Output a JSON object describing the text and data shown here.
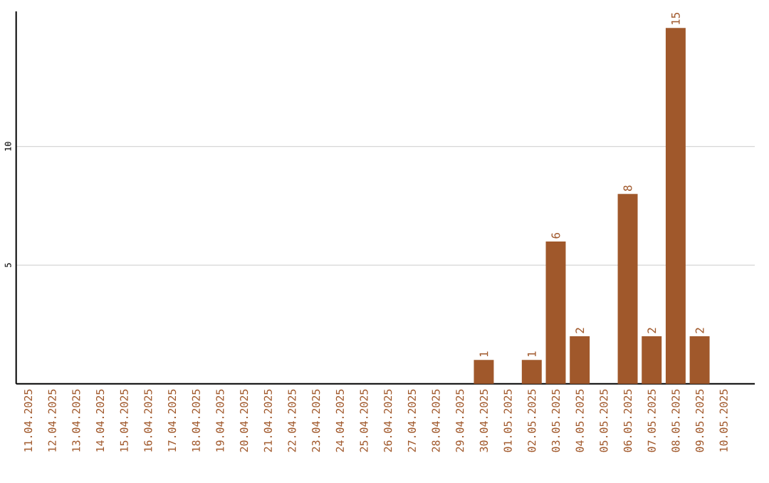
{
  "chart_data": {
    "type": "bar",
    "categories": [
      "11.04.2025",
      "12.04.2025",
      "13.04.2025",
      "14.04.2025",
      "15.04.2025",
      "16.04.2025",
      "17.04.2025",
      "18.04.2025",
      "19.04.2025",
      "20.04.2025",
      "21.04.2025",
      "22.04.2025",
      "23.04.2025",
      "24.04.2025",
      "25.04.2025",
      "26.04.2025",
      "27.04.2025",
      "28.04.2025",
      "29.04.2025",
      "30.04.2025",
      "01.05.2025",
      "02.05.2025",
      "03.05.2025",
      "04.05.2025",
      "05.05.2025",
      "06.05.2025",
      "07.05.2025",
      "08.05.2025",
      "09.05.2025",
      "10.05.2025"
    ],
    "values": [
      0,
      0,
      0,
      0,
      0,
      0,
      0,
      0,
      0,
      0,
      0,
      0,
      0,
      0,
      0,
      0,
      0,
      0,
      0,
      1,
      0,
      1,
      6,
      2,
      0,
      8,
      2,
      15,
      2,
      0
    ],
    "value_labels": [
      null,
      null,
      null,
      null,
      null,
      null,
      null,
      null,
      null,
      null,
      null,
      null,
      null,
      null,
      null,
      null,
      null,
      null,
      null,
      "1",
      null,
      "1",
      "6",
      "2",
      null,
      "8",
      "2",
      "15",
      "2",
      null
    ],
    "color": "#a0582b",
    "ylim": [
      0,
      15.7
    ],
    "yticks": [
      5,
      10
    ],
    "grid": "y"
  }
}
